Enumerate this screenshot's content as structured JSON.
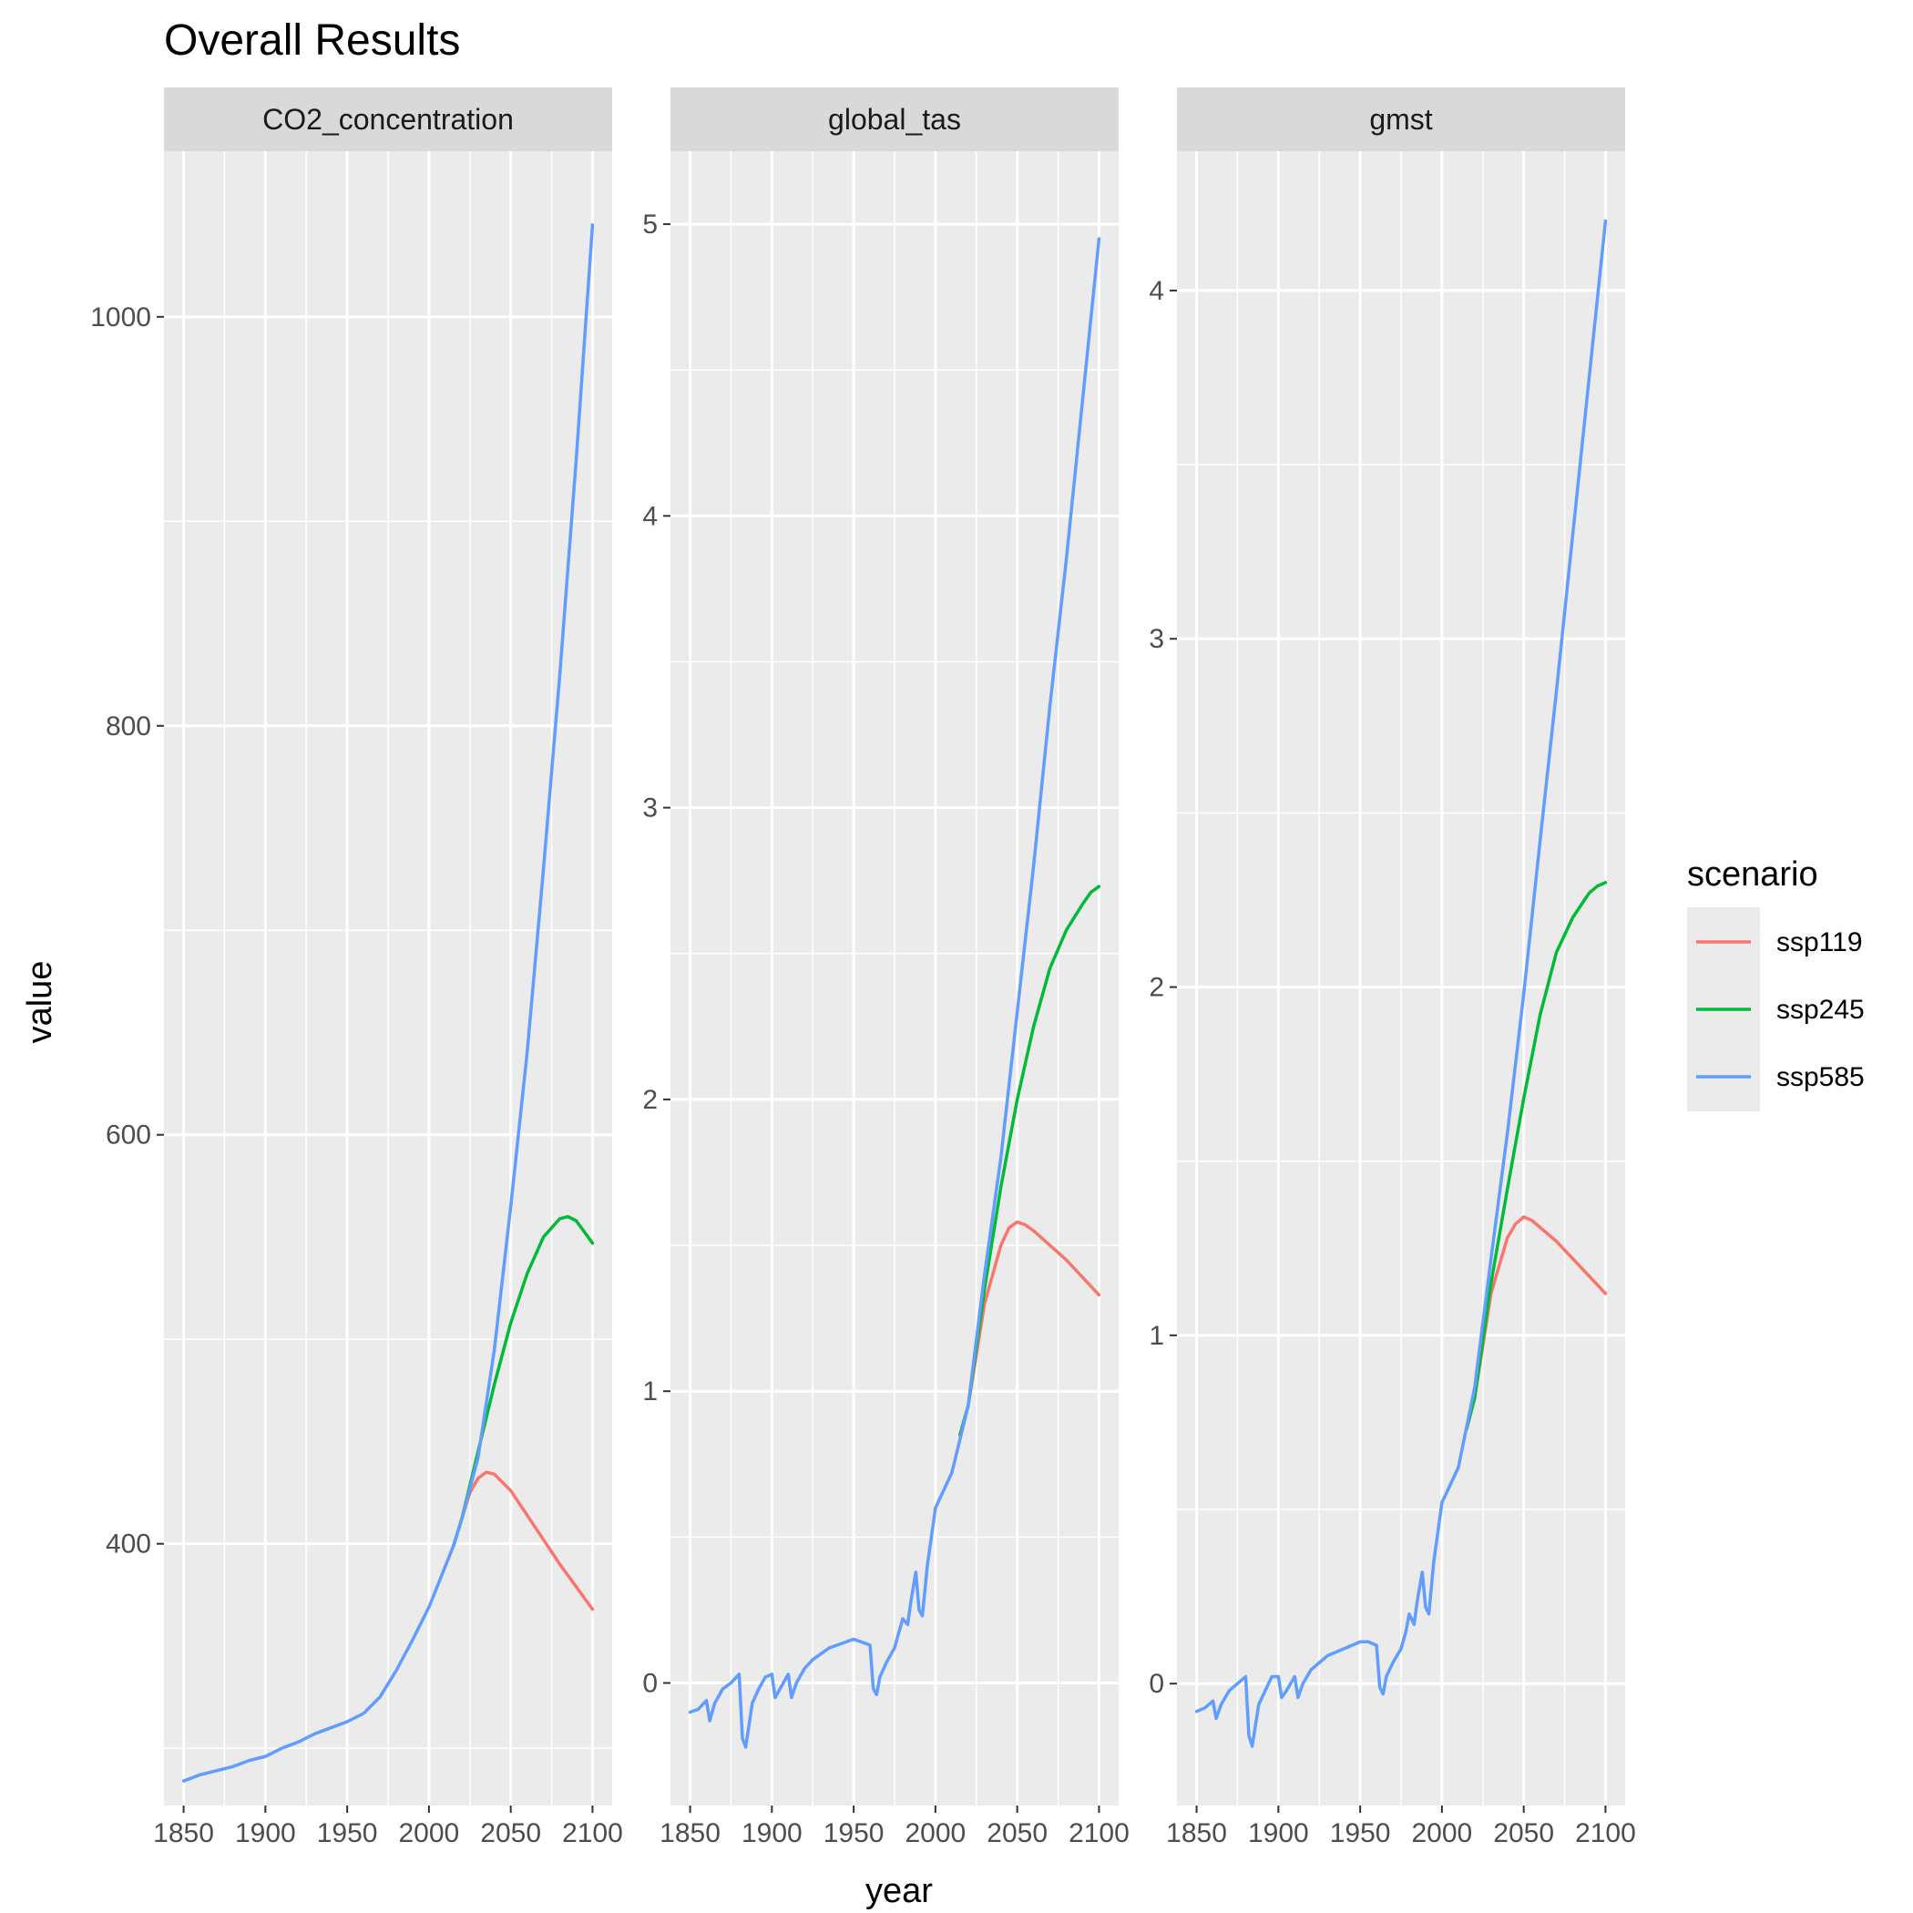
{
  "chart_data": {
    "type": "line",
    "title": "Overall Results",
    "xlabel": "year",
    "ylabel": "value",
    "legend": {
      "title": "scenario",
      "position": "right",
      "entries": [
        {
          "name": "ssp119",
          "color": "#F8766D"
        },
        {
          "name": "ssp245",
          "color": "#00BA38"
        },
        {
          "name": "ssp585",
          "color": "#619CFF"
        }
      ]
    },
    "x_ticks": [
      1850,
      1900,
      1950,
      2000,
      2050,
      2100
    ],
    "xlim": [
      1838,
      2112
    ],
    "grid": true,
    "panels": [
      {
        "name": "CO2_concentration",
        "ylim": [
          272,
          1081
        ],
        "y_ticks": [
          400,
          600,
          800,
          1000
        ],
        "y_minor": [
          300,
          500,
          700,
          900
        ],
        "series": [
          {
            "name": "ssp585",
            "x": [
              1850,
              1860,
              1870,
              1880,
              1890,
              1900,
              1910,
              1920,
              1930,
              1940,
              1950,
              1960,
              1970,
              1980,
              1990,
              2000,
              2010,
              2015,
              2020,
              2030,
              2040,
              2050,
              2060,
              2070,
              2080,
              2090,
              2100
            ],
            "y": [
              284,
              287,
              289,
              291,
              294,
              296,
              300,
              303,
              307,
              310,
              313,
              317,
              325,
              338,
              353,
              369,
              389,
              399,
              412,
              442,
              495,
              565,
              640,
              730,
              825,
              930,
              1045
            ]
          },
          {
            "name": "ssp245",
            "x": [
              2015,
              2020,
              2030,
              2040,
              2050,
              2060,
              2070,
              2080,
              2085,
              2090,
              2100
            ],
            "y": [
              399,
              412,
              445,
              478,
              508,
              532,
              550,
              559,
              560,
              558,
              547
            ]
          },
          {
            "name": "ssp119",
            "x": [
              2015,
              2020,
              2025,
              2030,
              2035,
              2040,
              2050,
              2060,
              2070,
              2080,
              2090,
              2100
            ],
            "y": [
              399,
              412,
              425,
              432,
              435,
              434,
              426,
              414,
              402,
              390,
              379,
              368
            ]
          }
        ]
      },
      {
        "name": "global_tas",
        "ylim": [
          -0.42,
          5.25
        ],
        "y_ticks": [
          0,
          1,
          2,
          3,
          4,
          5
        ],
        "y_minor": [
          0.5,
          1.5,
          2.5,
          3.5,
          4.5
        ],
        "series": [
          {
            "name": "ssp585",
            "x": [
              1850,
              1855,
              1860,
              1862,
              1865,
              1870,
              1875,
              1880,
              1882,
              1884,
              1888,
              1892,
              1896,
              1900,
              1902,
              1905,
              1910,
              1912,
              1915,
              1920,
              1925,
              1930,
              1935,
              1940,
              1945,
              1950,
              1955,
              1960,
              1962,
              1964,
              1966,
              1970,
              1975,
              1978,
              1980,
              1983,
              1985,
              1988,
              1990,
              1992,
              1995,
              2000,
              2010,
              2020,
              2030,
              2040,
              2050,
              2060,
              2070,
              2080,
              2090,
              2100
            ],
            "y": [
              -0.1,
              -0.09,
              -0.06,
              -0.13,
              -0.07,
              -0.02,
              0.0,
              0.03,
              -0.19,
              -0.22,
              -0.07,
              -0.02,
              0.02,
              0.03,
              -0.05,
              -0.02,
              0.03,
              -0.05,
              0.0,
              0.05,
              0.08,
              0.1,
              0.12,
              0.13,
              0.14,
              0.15,
              0.14,
              0.13,
              -0.02,
              -0.04,
              0.02,
              0.07,
              0.12,
              0.18,
              0.22,
              0.2,
              0.28,
              0.38,
              0.25,
              0.23,
              0.4,
              0.6,
              0.72,
              0.95,
              1.4,
              1.8,
              2.3,
              2.8,
              3.35,
              3.85,
              4.4,
              4.95
            ]
          },
          {
            "name": "ssp245",
            "x": [
              2015,
              2020,
              2030,
              2040,
              2050,
              2060,
              2070,
              2080,
              2090,
              2095,
              2100
            ],
            "y": [
              0.85,
              0.95,
              1.35,
              1.7,
              2.0,
              2.25,
              2.45,
              2.58,
              2.67,
              2.71,
              2.73
            ]
          },
          {
            "name": "ssp119",
            "x": [
              2015,
              2020,
              2030,
              2040,
              2045,
              2050,
              2055,
              2060,
              2070,
              2080,
              2090,
              2100
            ],
            "y": [
              0.85,
              0.95,
              1.3,
              1.5,
              1.56,
              1.58,
              1.57,
              1.55,
              1.5,
              1.45,
              1.39,
              1.33
            ]
          }
        ]
      },
      {
        "name": "gmst",
        "ylim": [
          -0.35,
          4.4
        ],
        "y_ticks": [
          0,
          1,
          2,
          3,
          4
        ],
        "y_minor": [
          0.5,
          1.5,
          2.5,
          3.5
        ],
        "series": [
          {
            "name": "ssp585",
            "x": [
              1850,
              1855,
              1860,
              1862,
              1865,
              1870,
              1875,
              1880,
              1882,
              1884,
              1888,
              1892,
              1896,
              1900,
              1902,
              1905,
              1910,
              1912,
              1915,
              1920,
              1925,
              1930,
              1935,
              1940,
              1945,
              1950,
              1955,
              1960,
              1962,
              1964,
              1966,
              1970,
              1975,
              1978,
              1980,
              1983,
              1985,
              1988,
              1990,
              1992,
              1995,
              2000,
              2010,
              2020,
              2030,
              2040,
              2050,
              2060,
              2070,
              2080,
              2090,
              2100
            ],
            "y": [
              -0.08,
              -0.07,
              -0.05,
              -0.1,
              -0.06,
              -0.02,
              0.0,
              0.02,
              -0.15,
              -0.18,
              -0.06,
              -0.02,
              0.02,
              0.02,
              -0.04,
              -0.02,
              0.02,
              -0.04,
              0.0,
              0.04,
              0.06,
              0.08,
              0.09,
              0.1,
              0.11,
              0.12,
              0.12,
              0.11,
              -0.01,
              -0.03,
              0.02,
              0.06,
              0.1,
              0.15,
              0.2,
              0.17,
              0.24,
              0.32,
              0.22,
              0.2,
              0.35,
              0.52,
              0.62,
              0.85,
              1.22,
              1.58,
              1.98,
              2.42,
              2.85,
              3.3,
              3.75,
              4.2
            ]
          },
          {
            "name": "ssp245",
            "x": [
              2015,
              2020,
              2030,
              2040,
              2050,
              2060,
              2070,
              2080,
              2090,
              2095,
              2100
            ],
            "y": [
              0.73,
              0.82,
              1.15,
              1.42,
              1.68,
              1.92,
              2.1,
              2.2,
              2.27,
              2.29,
              2.3
            ]
          },
          {
            "name": "ssp119",
            "x": [
              2015,
              2020,
              2030,
              2040,
              2045,
              2050,
              2055,
              2060,
              2070,
              2080,
              2090,
              2100
            ],
            "y": [
              0.73,
              0.82,
              1.12,
              1.28,
              1.32,
              1.34,
              1.33,
              1.31,
              1.27,
              1.22,
              1.17,
              1.12
            ]
          }
        ]
      }
    ]
  }
}
